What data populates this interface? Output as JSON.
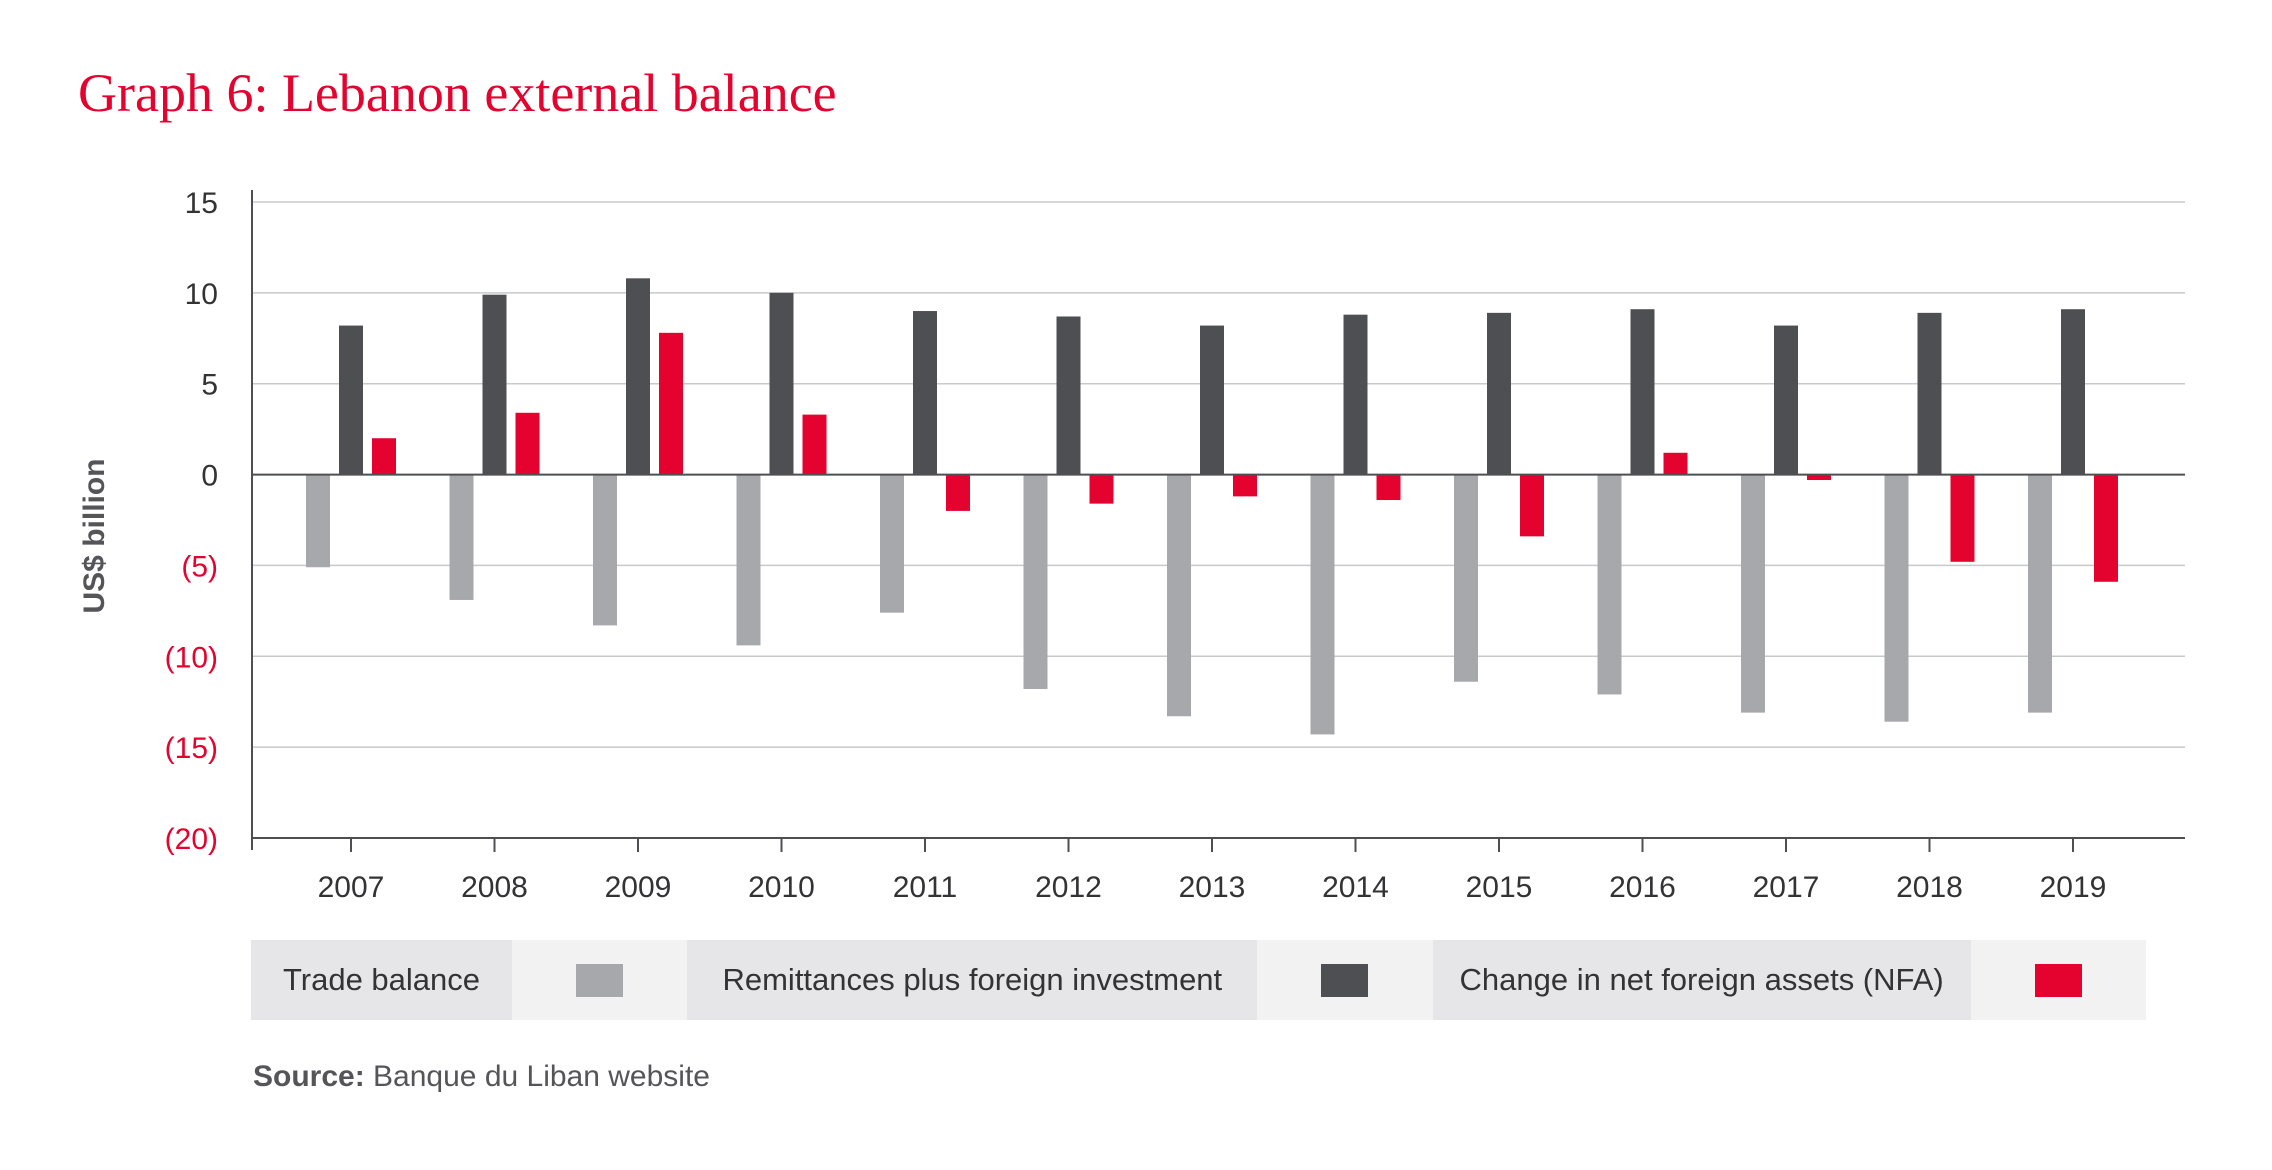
{
  "title": "Graph 6: Lebanon external balance",
  "source": {
    "label": "Source:",
    "text": "Banque du Liban website"
  },
  "colors": {
    "title": "#e4032e",
    "trade": "#a7a8ab",
    "remit": "#4e4f53",
    "nfa": "#e4032e",
    "grid": "#c8c9cb",
    "axis": "#4e4f53"
  },
  "legend": {
    "items": [
      {
        "label": "Trade balance",
        "color": "#a7a8ab"
      },
      {
        "label": "Remittances plus foreign investment",
        "color": "#4e4f53"
      },
      {
        "label": "Change in net foreign assets (NFA)",
        "color": "#e4032e"
      }
    ]
  },
  "chart_data": {
    "type": "bar",
    "ylabel": "US$ billion",
    "ylim": [
      -20,
      15
    ],
    "yticks": [
      15,
      10,
      5,
      0,
      -5,
      -10,
      -15,
      -20
    ],
    "ytick_labels": [
      "15",
      "10",
      "5",
      "0",
      "(5)",
      "(10)",
      "(15)",
      "(20)"
    ],
    "grid": true,
    "legend_position": "bottom",
    "categories": [
      "2007",
      "2008",
      "2009",
      "2010",
      "2011",
      "2012",
      "2013",
      "2014",
      "2015",
      "2016",
      "2017",
      "2018",
      "2019"
    ],
    "series": [
      {
        "name": "Trade balance",
        "color": "#a7a8ab",
        "values": [
          -5.1,
          -6.9,
          -8.3,
          -9.4,
          -7.6,
          -11.8,
          -13.3,
          -14.3,
          -11.4,
          -12.1,
          -13.1,
          -13.6,
          -13.1
        ]
      },
      {
        "name": "Remittances plus foreign investment",
        "color": "#4e4f53",
        "values": [
          8.2,
          9.9,
          10.8,
          10.0,
          9.0,
          8.7,
          8.2,
          8.8,
          8.9,
          9.1,
          8.2,
          8.9,
          9.1
        ]
      },
      {
        "name": "Change in net foreign assets (NFA)",
        "color": "#e4032e",
        "values": [
          2.0,
          3.4,
          7.8,
          3.3,
          -2.0,
          -1.6,
          -1.2,
          -1.4,
          -3.4,
          1.2,
          -0.3,
          -4.8,
          -5.9
        ]
      }
    ]
  }
}
